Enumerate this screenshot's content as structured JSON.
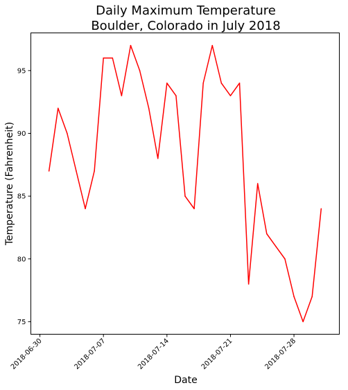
{
  "chart_data": {
    "type": "line",
    "title": "Daily Maximum Temperature",
    "subtitle": "Boulder, Colorado in July 2018",
    "xlabel": "Date",
    "ylabel": "Temperature (Fahrenheit)",
    "xlim": [
      "2018-06-29",
      "2018-08-02"
    ],
    "ylim": [
      74,
      98
    ],
    "grid": false,
    "line_color": "#ff0000",
    "x_ticks": [
      "2018-06-30",
      "2018-07-07",
      "2018-07-14",
      "2018-07-21",
      "2018-07-28"
    ],
    "y_ticks": [
      75,
      80,
      85,
      90,
      95
    ],
    "series": [
      {
        "x": [
          "2018-07-01",
          "2018-07-02",
          "2018-07-03",
          "2018-07-04",
          "2018-07-05",
          "2018-07-06",
          "2018-07-07",
          "2018-07-08",
          "2018-07-09",
          "2018-07-10",
          "2018-07-11",
          "2018-07-12",
          "2018-07-13",
          "2018-07-14",
          "2018-07-15",
          "2018-07-16",
          "2018-07-17",
          "2018-07-18",
          "2018-07-19",
          "2018-07-20",
          "2018-07-21",
          "2018-07-22",
          "2018-07-23",
          "2018-07-24",
          "2018-07-25",
          "2018-07-26",
          "2018-07-27",
          "2018-07-28",
          "2018-07-29",
          "2018-07-30",
          "2018-07-31"
        ],
        "values": [
          87,
          92,
          90,
          87,
          84,
          87,
          96,
          96,
          93,
          97,
          95,
          92,
          88,
          94,
          93,
          85,
          84,
          94,
          97,
          94,
          93,
          94,
          78,
          86,
          82,
          81,
          80,
          77,
          75,
          77,
          84
        ]
      }
    ]
  }
}
